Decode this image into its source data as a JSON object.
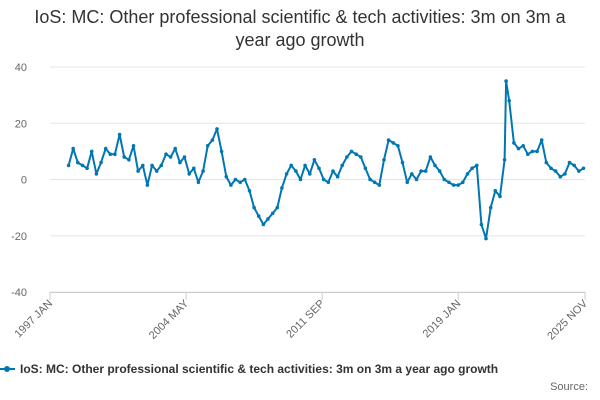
{
  "title": "IoS: MC: Other professional scientific & tech activities: 3m on 3m a year ago growth",
  "legend": {
    "label": "IoS: MC: Other professional scientific & tech activities: 3m on 3m a year ago growth"
  },
  "source_label": "Source:",
  "colors": {
    "series": "#0077b3",
    "grid": "#e6e6e6",
    "axis_text": "#666666"
  },
  "chart_data": {
    "type": "line",
    "title": "IoS: MC: Other professional scientific & tech activities: 3m on 3m a year ago growth",
    "xlabel": "",
    "ylabel": "",
    "ylim": [
      -40,
      40
    ],
    "yticks": [
      -40,
      -20,
      0,
      20,
      40
    ],
    "xlim": [
      "1997-01",
      "2025-11"
    ],
    "xtick_labels": [
      "1997 JAN",
      "2004 MAY",
      "2011 SEP",
      "2019 JAN",
      "2025 NOV"
    ],
    "xtick_values": [
      "1997-01",
      "2004-05",
      "2011-09",
      "2019-01",
      "2025-11"
    ],
    "grid": true,
    "legend_position": "bottom",
    "series": [
      {
        "name": "IoS: MC: Other professional scientific & tech activities: 3m on 3m a year ago growth",
        "points": [
          [
            "1998-01",
            5
          ],
          [
            "1998-04",
            11
          ],
          [
            "1998-07",
            6
          ],
          [
            "1998-10",
            5
          ],
          [
            "1999-01",
            4
          ],
          [
            "1999-04",
            10
          ],
          [
            "1999-07",
            2
          ],
          [
            "1999-10",
            6
          ],
          [
            "2000-01",
            11
          ],
          [
            "2000-04",
            9
          ],
          [
            "2000-07",
            9
          ],
          [
            "2000-10",
            16
          ],
          [
            "2001-01",
            8
          ],
          [
            "2001-04",
            7
          ],
          [
            "2001-07",
            12
          ],
          [
            "2001-10",
            3
          ],
          [
            "2002-01",
            5
          ],
          [
            "2002-04",
            -2
          ],
          [
            "2002-07",
            5
          ],
          [
            "2002-10",
            3
          ],
          [
            "2003-01",
            5
          ],
          [
            "2003-04",
            9
          ],
          [
            "2003-07",
            8
          ],
          [
            "2003-10",
            11
          ],
          [
            "2004-01",
            6
          ],
          [
            "2004-04",
            8
          ],
          [
            "2004-07",
            2
          ],
          [
            "2004-10",
            4
          ],
          [
            "2005-01",
            -1
          ],
          [
            "2005-04",
            3
          ],
          [
            "2005-07",
            12
          ],
          [
            "2005-10",
            14
          ],
          [
            "2006-01",
            18
          ],
          [
            "2006-04",
            10
          ],
          [
            "2006-07",
            1
          ],
          [
            "2006-10",
            -2
          ],
          [
            "2007-01",
            0
          ],
          [
            "2007-04",
            -1
          ],
          [
            "2007-07",
            0
          ],
          [
            "2007-10",
            -4
          ],
          [
            "2008-01",
            -10
          ],
          [
            "2008-04",
            -13
          ],
          [
            "2008-07",
            -16
          ],
          [
            "2008-10",
            -14
          ],
          [
            "2009-01",
            -12
          ],
          [
            "2009-04",
            -10
          ],
          [
            "2009-07",
            -3
          ],
          [
            "2009-10",
            2
          ],
          [
            "2010-01",
            5
          ],
          [
            "2010-04",
            3
          ],
          [
            "2010-07",
            0
          ],
          [
            "2010-10",
            5
          ],
          [
            "2011-01",
            2
          ],
          [
            "2011-04",
            7
          ],
          [
            "2011-07",
            4
          ],
          [
            "2011-10",
            0
          ],
          [
            "2012-01",
            -1
          ],
          [
            "2012-04",
            3
          ],
          [
            "2012-07",
            1
          ],
          [
            "2012-10",
            5
          ],
          [
            "2013-01",
            8
          ],
          [
            "2013-04",
            10
          ],
          [
            "2013-07",
            9
          ],
          [
            "2013-10",
            8
          ],
          [
            "2014-01",
            4
          ],
          [
            "2014-04",
            0
          ],
          [
            "2014-07",
            -1
          ],
          [
            "2014-10",
            -2
          ],
          [
            "2015-01",
            7
          ],
          [
            "2015-04",
            14
          ],
          [
            "2015-07",
            13
          ],
          [
            "2015-10",
            12
          ],
          [
            "2016-01",
            6
          ],
          [
            "2016-04",
            -1
          ],
          [
            "2016-07",
            2
          ],
          [
            "2016-10",
            0
          ],
          [
            "2017-01",
            3
          ],
          [
            "2017-04",
            3
          ],
          [
            "2017-07",
            8
          ],
          [
            "2017-10",
            5
          ],
          [
            "2018-01",
            3
          ],
          [
            "2018-04",
            0
          ],
          [
            "2018-07",
            -1
          ],
          [
            "2018-10",
            -2
          ],
          [
            "2019-01",
            -2
          ],
          [
            "2019-04",
            -1
          ],
          [
            "2019-07",
            2
          ],
          [
            "2019-10",
            4
          ],
          [
            "2020-01",
            5
          ],
          [
            "2020-04",
            -16
          ],
          [
            "2020-07",
            -21
          ],
          [
            "2020-10",
            -10
          ],
          [
            "2021-01",
            -4
          ],
          [
            "2021-04",
            -6
          ],
          [
            "2021-07",
            7
          ],
          [
            "2021-08",
            35
          ],
          [
            "2021-10",
            28
          ],
          [
            "2022-01",
            13
          ],
          [
            "2022-04",
            11
          ],
          [
            "2022-07",
            12
          ],
          [
            "2022-10",
            9
          ],
          [
            "2023-01",
            10
          ],
          [
            "2023-04",
            10
          ],
          [
            "2023-07",
            14
          ],
          [
            "2023-10",
            6
          ],
          [
            "2024-01",
            4
          ],
          [
            "2024-04",
            3
          ],
          [
            "2024-07",
            1
          ],
          [
            "2024-10",
            2
          ],
          [
            "2025-01",
            6
          ],
          [
            "2025-04",
            5
          ],
          [
            "2025-07",
            3
          ],
          [
            "2025-10",
            4
          ]
        ]
      }
    ]
  }
}
